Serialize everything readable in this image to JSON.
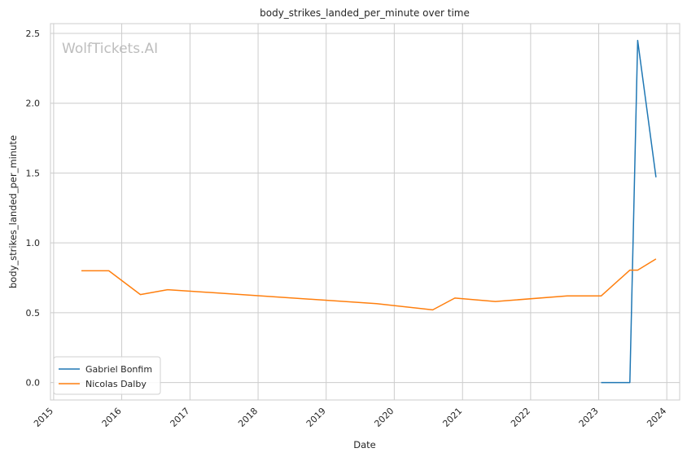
{
  "chart_data": {
    "type": "line",
    "title": "body_strikes_landed_per_minute over time",
    "xlabel": "Date",
    "ylabel": "body_strikes_landed_per_minute",
    "watermark": "WolfTickets.AI",
    "x_type": "date",
    "xlim": [
      "2014-12-15",
      "2024-03-10"
    ],
    "ylim": [
      -0.125,
      2.57
    ],
    "x_ticks": [
      "2015",
      "2016",
      "2017",
      "2018",
      "2019",
      "2020",
      "2021",
      "2022",
      "2023",
      "2024"
    ],
    "y_ticks": [
      "0.0",
      "0.5",
      "1.0",
      "1.5",
      "2.0",
      "2.5"
    ],
    "grid": true,
    "legend_position": "lower-left",
    "series": [
      {
        "name": "Gabriel Bonfim",
        "color": "#1f77b4",
        "points": [
          {
            "x": "2023-01-14",
            "y": 0.0
          },
          {
            "x": "2023-06-17",
            "y": 0.0
          },
          {
            "x": "2023-07-29",
            "y": 2.45
          },
          {
            "x": "2023-11-04",
            "y": 1.47
          }
        ]
      },
      {
        "name": "Nicolas Dalby",
        "color": "#ff7f0e",
        "points": [
          {
            "x": "2015-05-30",
            "y": 0.8
          },
          {
            "x": "2015-10-24",
            "y": 0.8
          },
          {
            "x": "2016-04-10",
            "y": 0.63
          },
          {
            "x": "2016-09-03",
            "y": 0.665
          },
          {
            "x": "2019-09-28",
            "y": 0.565
          },
          {
            "x": "2020-07-25",
            "y": 0.52
          },
          {
            "x": "2020-11-21",
            "y": 0.605
          },
          {
            "x": "2021-06-26",
            "y": 0.58
          },
          {
            "x": "2022-07-16",
            "y": 0.62
          },
          {
            "x": "2023-01-14",
            "y": 0.62
          },
          {
            "x": "2023-06-17",
            "y": 0.805
          },
          {
            "x": "2023-07-29",
            "y": 0.805
          },
          {
            "x": "2023-11-04",
            "y": 0.885
          }
        ]
      }
    ]
  }
}
